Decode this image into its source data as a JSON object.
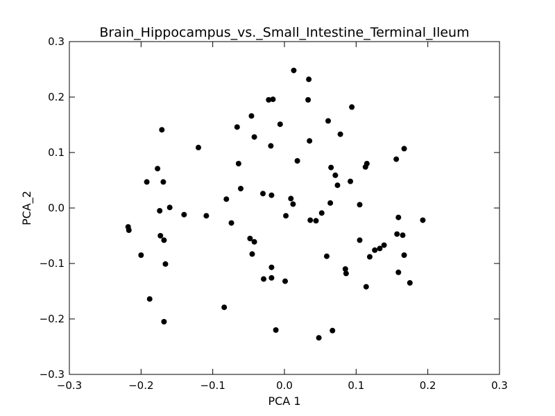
{
  "chart_data": {
    "type": "scatter",
    "title": "Brain_Hippocampus_vs._Small_Intestine_Terminal_Ileum",
    "xlabel": "PCA 1",
    "ylabel": "PCA_2",
    "xlim": [
      -0.3,
      0.3
    ],
    "ylim": [
      -0.3,
      0.3
    ],
    "xticks": [
      -0.3,
      -0.2,
      -0.1,
      0.0,
      0.1,
      0.2,
      0.3
    ],
    "xtick_labels": [
      "−0.3",
      "−0.2",
      "−0.1",
      "0.0",
      "0.1",
      "0.2",
      "0.3"
    ],
    "yticks": [
      -0.3,
      -0.2,
      -0.1,
      0.0,
      0.1,
      0.2,
      0.3
    ],
    "ytick_labels": [
      "−0.3",
      "−0.2",
      "−0.1",
      "0.0",
      "0.1",
      "0.2",
      "0.3"
    ],
    "grid": false,
    "marker_color": "#000000",
    "points": [
      {
        "x": 0.013,
        "y": 0.248
      },
      {
        "x": 0.034,
        "y": 0.232
      },
      {
        "x": -0.022,
        "y": 0.195
      },
      {
        "x": -0.016,
        "y": 0.196
      },
      {
        "x": 0.033,
        "y": 0.195
      },
      {
        "x": 0.094,
        "y": 0.182
      },
      {
        "x": -0.046,
        "y": 0.166
      },
      {
        "x": 0.061,
        "y": 0.157
      },
      {
        "x": -0.066,
        "y": 0.146
      },
      {
        "x": -0.006,
        "y": 0.151
      },
      {
        "x": -0.171,
        "y": 0.141
      },
      {
        "x": 0.078,
        "y": 0.133
      },
      {
        "x": -0.042,
        "y": 0.128
      },
      {
        "x": 0.035,
        "y": 0.121
      },
      {
        "x": -0.019,
        "y": 0.112
      },
      {
        "x": -0.12,
        "y": 0.109
      },
      {
        "x": 0.167,
        "y": 0.107
      },
      {
        "x": 0.156,
        "y": 0.088
      },
      {
        "x": 0.018,
        "y": 0.085
      },
      {
        "x": -0.064,
        "y": 0.08
      },
      {
        "x": 0.115,
        "y": 0.08
      },
      {
        "x": 0.113,
        "y": 0.074
      },
      {
        "x": 0.065,
        "y": 0.073
      },
      {
        "x": -0.177,
        "y": 0.071
      },
      {
        "x": 0.071,
        "y": 0.059
      },
      {
        "x": -0.192,
        "y": 0.047
      },
      {
        "x": -0.169,
        "y": 0.047
      },
      {
        "x": 0.092,
        "y": 0.048
      },
      {
        "x": 0.074,
        "y": 0.041
      },
      {
        "x": -0.061,
        "y": 0.035
      },
      {
        "x": -0.03,
        "y": 0.026
      },
      {
        "x": -0.018,
        "y": 0.023
      },
      {
        "x": -0.081,
        "y": 0.016
      },
      {
        "x": 0.009,
        "y": 0.017
      },
      {
        "x": 0.064,
        "y": 0.009
      },
      {
        "x": 0.012,
        "y": 0.007
      },
      {
        "x": 0.105,
        "y": 0.006
      },
      {
        "x": -0.16,
        "y": 0.001
      },
      {
        "x": -0.174,
        "y": -0.005
      },
      {
        "x": 0.052,
        "y": -0.009
      },
      {
        "x": -0.14,
        "y": -0.012
      },
      {
        "x": -0.109,
        "y": -0.014
      },
      {
        "x": 0.002,
        "y": -0.014
      },
      {
        "x": 0.159,
        "y": -0.017
      },
      {
        "x": 0.036,
        "y": -0.022
      },
      {
        "x": 0.044,
        "y": -0.023
      },
      {
        "x": 0.193,
        "y": -0.022
      },
      {
        "x": -0.074,
        "y": -0.027
      },
      {
        "x": -0.218,
        "y": -0.034
      },
      {
        "x": -0.217,
        "y": -0.04
      },
      {
        "x": 0.157,
        "y": -0.047
      },
      {
        "x": 0.165,
        "y": -0.049
      },
      {
        "x": -0.173,
        "y": -0.05
      },
      {
        "x": -0.048,
        "y": -0.055
      },
      {
        "x": -0.168,
        "y": -0.058
      },
      {
        "x": 0.105,
        "y": -0.058
      },
      {
        "x": -0.042,
        "y": -0.061
      },
      {
        "x": 0.139,
        "y": -0.067
      },
      {
        "x": 0.133,
        "y": -0.073
      },
      {
        "x": 0.126,
        "y": -0.076
      },
      {
        "x": -0.045,
        "y": -0.083
      },
      {
        "x": -0.2,
        "y": -0.085
      },
      {
        "x": 0.059,
        "y": -0.087
      },
      {
        "x": 0.167,
        "y": -0.085
      },
      {
        "x": 0.119,
        "y": -0.088
      },
      {
        "x": -0.166,
        "y": -0.101
      },
      {
        "x": -0.018,
        "y": -0.107
      },
      {
        "x": 0.085,
        "y": -0.11
      },
      {
        "x": 0.159,
        "y": -0.116
      },
      {
        "x": 0.086,
        "y": -0.118
      },
      {
        "x": -0.018,
        "y": -0.126
      },
      {
        "x": -0.029,
        "y": -0.128
      },
      {
        "x": 0.001,
        "y": -0.132
      },
      {
        "x": 0.175,
        "y": -0.135
      },
      {
        "x": 0.114,
        "y": -0.142
      },
      {
        "x": -0.188,
        "y": -0.164
      },
      {
        "x": -0.084,
        "y": -0.179
      },
      {
        "x": -0.168,
        "y": -0.205
      },
      {
        "x": -0.012,
        "y": -0.22
      },
      {
        "x": 0.067,
        "y": -0.221
      },
      {
        "x": 0.048,
        "y": -0.234
      }
    ]
  }
}
